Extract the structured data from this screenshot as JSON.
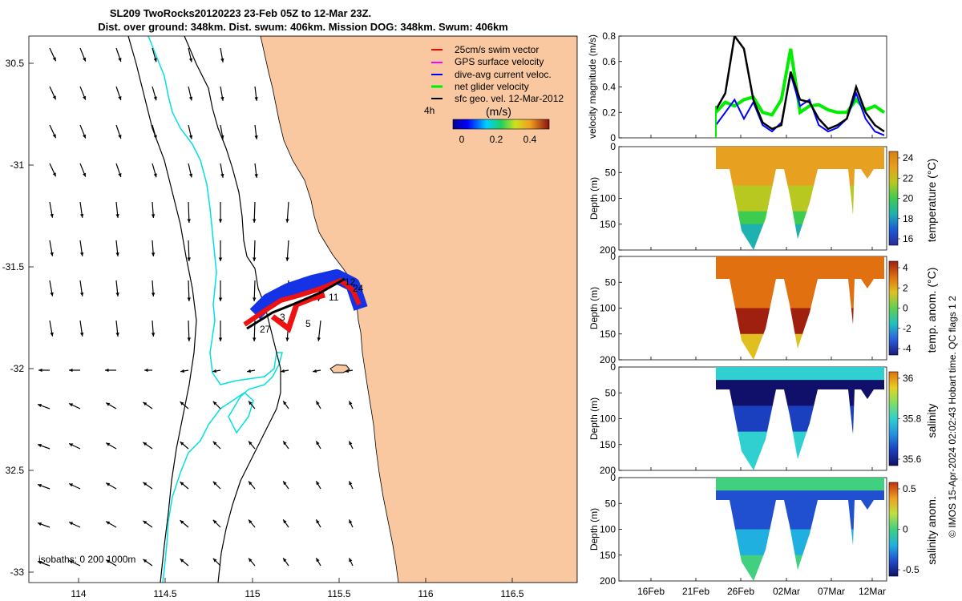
{
  "title": {
    "line1": "SL209 TwoRocks20120223 23-Feb 05Z to 12-Mar 23Z.",
    "line2": "Dist. over ground: 348km. Dist. swum: 406km. Mission DOG: 348km. Swum: 406km"
  },
  "colors": {
    "land": "#f9c8a0",
    "isobath_0": "#00e0e0",
    "isobath_other": "#000000",
    "swim_vector": "#ff0000",
    "gps_velocity": "#ff00ff",
    "dive_avg": "#0000ff",
    "net_glider": "#00ee00",
    "sfc_geo": "#000000",
    "track_blue": "#1533e6",
    "track_red": "#ee1111"
  },
  "map": {
    "lon_ticks": [
      "114",
      "114.5",
      "115",
      "115.5",
      "116",
      "116.5"
    ],
    "lat_ticks": [
      "30.5",
      "-31",
      "-31.5",
      "-32",
      "32.5",
      "-33"
    ],
    "legend": [
      {
        "key": "swim",
        "label": "25cm/s swim vector"
      },
      {
        "key": "gps",
        "label": "GPS surface velocity"
      },
      {
        "key": "dive",
        "label": "dive-avg current veloc."
      },
      {
        "key": "net",
        "label": "net glider velocity"
      },
      {
        "key": "geo",
        "label": "sfc geo. vel. 12-Mar-2012"
      }
    ],
    "colorbar": {
      "label": "(m/s)",
      "ticks": [
        "0",
        "0.2",
        "0.4"
      ],
      "side_label": "4h"
    },
    "isobaths_note": "isobaths: 0   200  1000m",
    "day_labels": [
      "12",
      "24",
      "11",
      "3",
      "5",
      "27"
    ]
  },
  "velocity_panel": {
    "ylabel": "velocity magnitude (m/s)",
    "yticks": [
      "0",
      "0.2",
      "0.4",
      "0.6",
      "0.8"
    ],
    "ylim": [
      0,
      0.8
    ]
  },
  "chart_data": [
    {
      "type": "line",
      "title": "velocity magnitude",
      "ylabel": "velocity magnitude (m/s)",
      "ylim": [
        0,
        0.8
      ],
      "x_days": [
        0,
        1,
        2,
        3,
        4,
        5,
        6,
        7,
        8,
        9,
        10,
        11,
        12,
        13,
        14,
        15,
        16,
        17,
        18
      ],
      "series": [
        {
          "name": "sfc geo. vel.",
          "values": [
            0.22,
            0.35,
            0.8,
            0.7,
            0.3,
            0.12,
            0.07,
            0.1,
            0.52,
            0.3,
            0.28,
            0.15,
            0.07,
            0.1,
            0.15,
            0.4,
            0.2,
            0.1,
            0.05
          ]
        },
        {
          "name": "net glider velocity",
          "values": [
            0.2,
            0.28,
            0.25,
            0.3,
            0.32,
            0.2,
            0.18,
            0.3,
            0.7,
            0.2,
            0.25,
            0.26,
            0.22,
            0.2,
            0.2,
            0.3,
            0.22,
            0.25,
            0.2
          ]
        },
        {
          "name": "dive-avg current veloc.",
          "values": [
            0.1,
            0.2,
            0.3,
            0.15,
            0.28,
            0.1,
            0.05,
            0.12,
            0.5,
            0.25,
            0.3,
            0.1,
            0.05,
            0.08,
            0.15,
            0.35,
            0.15,
            0.05,
            0.02
          ]
        }
      ]
    },
    {
      "type": "heatmap",
      "title": "temperature",
      "colorbar_label": "temperature (°C)",
      "colorbar_ticks": [
        "24",
        "22",
        "20",
        "18",
        "16"
      ],
      "range": [
        15,
        25.5
      ],
      "ylabel": "Depth (m)",
      "y_range": [
        0,
        200
      ],
      "yticks": [
        "0",
        "50",
        "100",
        "150",
        "200"
      ]
    },
    {
      "type": "heatmap",
      "title": "temp. anom.",
      "colorbar_label": "temp. anom. (°C)",
      "colorbar_ticks": [
        "4",
        "2",
        "0",
        "-2",
        "-4"
      ],
      "range": [
        -4,
        4
      ],
      "ylabel": "Depth (m)",
      "y_range": [
        0,
        200
      ],
      "yticks": [
        "0",
        "50",
        "100",
        "150",
        "200"
      ]
    },
    {
      "type": "heatmap",
      "title": "salinity",
      "colorbar_label": "salinity",
      "colorbar_ticks": [
        "36",
        "35.8",
        "35.6"
      ],
      "range": [
        35.45,
        36.1
      ],
      "ylabel": "Depth (m)",
      "y_range": [
        0,
        200
      ],
      "yticks": [
        "0",
        "50",
        "100",
        "150",
        "200"
      ]
    },
    {
      "type": "heatmap",
      "title": "salinity anom.",
      "colorbar_label": "salinity anom.",
      "colorbar_ticks": [
        "0.5",
        "0",
        "-0.5"
      ],
      "range": [
        -0.5,
        0.5
      ],
      "ylabel": "Depth (m)",
      "y_range": [
        0,
        200
      ],
      "yticks": [
        "0",
        "50",
        "100",
        "150",
        "200"
      ]
    }
  ],
  "time_axis": {
    "ticks": [
      "16Feb",
      "21Feb",
      "26Feb",
      "02Mar",
      "07Mar",
      "12Mar"
    ]
  },
  "footer": {
    "credit": "© IMOS 15-Apr-2024 02:02:43 Hobart time. QC flags 1  2"
  }
}
